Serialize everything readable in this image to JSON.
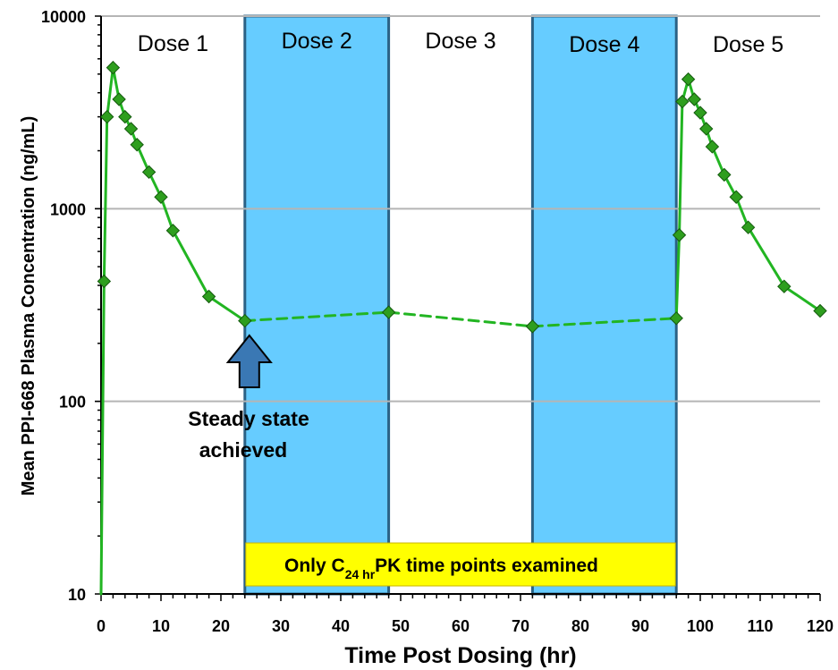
{
  "chart_data": {
    "type": "line",
    "xlabel": "Time Post Dosing (hr)",
    "ylabel": "Mean PPI-668 Plasma Concentration (ng/mL)",
    "x_scale": "linear",
    "y_scale": "log",
    "xlim": [
      0,
      120
    ],
    "ylim": [
      10,
      10000
    ],
    "x_ticks": [
      0,
      10,
      20,
      30,
      40,
      50,
      60,
      70,
      80,
      90,
      100,
      110,
      120
    ],
    "y_ticks": [
      10,
      100,
      1000,
      10000
    ],
    "grid": "horizontal",
    "series": [
      {
        "color": "#22b522",
        "marker_color": "#2e9e1e",
        "points": [
          {
            "x": 0,
            "y": 10,
            "marker": false,
            "dashed": false
          },
          {
            "x": 0.5,
            "y": 420,
            "marker": true,
            "dashed": false
          },
          {
            "x": 1,
            "y": 3000,
            "marker": true,
            "dashed": false
          },
          {
            "x": 2,
            "y": 5400,
            "marker": true,
            "dashed": false
          },
          {
            "x": 3,
            "y": 3700,
            "marker": true,
            "dashed": false
          },
          {
            "x": 4,
            "y": 3000,
            "marker": true,
            "dashed": false
          },
          {
            "x": 5,
            "y": 2600,
            "marker": true,
            "dashed": false
          },
          {
            "x": 6,
            "y": 2150,
            "marker": true,
            "dashed": false
          },
          {
            "x": 8,
            "y": 1550,
            "marker": true,
            "dashed": false
          },
          {
            "x": 10,
            "y": 1150,
            "marker": true,
            "dashed": false
          },
          {
            "x": 12,
            "y": 770,
            "marker": true,
            "dashed": false
          },
          {
            "x": 18,
            "y": 350,
            "marker": true,
            "dashed": false
          },
          {
            "x": 24,
            "y": 262,
            "marker": true,
            "dashed": false
          },
          {
            "x": 48,
            "y": 290,
            "marker": true,
            "dashed": true
          },
          {
            "x": 72,
            "y": 245,
            "marker": true,
            "dashed": true
          },
          {
            "x": 96,
            "y": 270,
            "marker": true,
            "dashed": true
          },
          {
            "x": 96.5,
            "y": 730,
            "marker": true,
            "dashed": false
          },
          {
            "x": 97,
            "y": 3600,
            "marker": true,
            "dashed": false
          },
          {
            "x": 98,
            "y": 4700,
            "marker": true,
            "dashed": false
          },
          {
            "x": 99,
            "y": 3700,
            "marker": true,
            "dashed": false
          },
          {
            "x": 100,
            "y": 3150,
            "marker": true,
            "dashed": false
          },
          {
            "x": 101,
            "y": 2600,
            "marker": true,
            "dashed": false
          },
          {
            "x": 102,
            "y": 2100,
            "marker": true,
            "dashed": false
          },
          {
            "x": 104,
            "y": 1500,
            "marker": true,
            "dashed": false
          },
          {
            "x": 106,
            "y": 1150,
            "marker": true,
            "dashed": false
          },
          {
            "x": 108,
            "y": 800,
            "marker": true,
            "dashed": false
          },
          {
            "x": 114,
            "y": 395,
            "marker": true,
            "dashed": false
          },
          {
            "x": 120,
            "y": 295,
            "marker": true,
            "dashed": false
          }
        ]
      }
    ],
    "shaded_regions": [
      {
        "x_start": 24,
        "x_end": 48,
        "color": "#66ccff"
      },
      {
        "x_start": 72,
        "x_end": 96,
        "color": "#66ccff"
      }
    ],
    "dose_labels": [
      {
        "text": "Dose 1",
        "x": 12
      },
      {
        "text": "Dose 2",
        "x": 36
      },
      {
        "text": "Dose 3",
        "x": 60
      },
      {
        "text": "Dose 4",
        "x": 84
      },
      {
        "text": "Dose 5",
        "x": 108
      }
    ],
    "annotations": {
      "steady_state_line1": "Steady state",
      "steady_state_line2": "achieved",
      "steady_state_x": 24,
      "steady_state_y": 262,
      "banner_prefix": "Only C",
      "banner_subscript": "24 hr",
      "banner_suffix": "PK time points examined",
      "banner_x_start": 24,
      "banner_x_end": 96,
      "banner_color": "#ffff00"
    }
  }
}
